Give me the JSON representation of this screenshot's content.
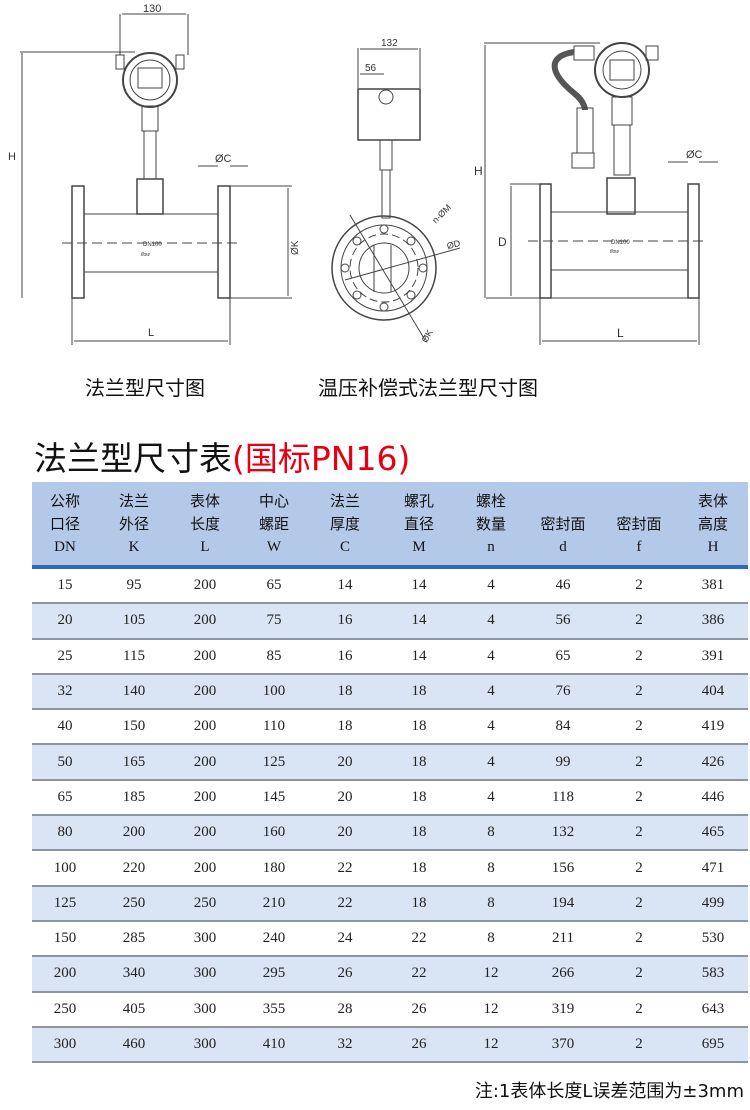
{
  "drawings": {
    "left": {
      "caption": "法兰型尺寸图",
      "labels": {
        "width": "130",
        "height": "H",
        "flange_thickness": "ØC",
        "flange_diameter": "ØK",
        "length": "L",
        "nameplate": "DN100",
        "flow": "flow"
      }
    },
    "middle": {
      "caption": "温压补偿式法兰型尺寸图",
      "labels": {
        "width": "132",
        "offset": "56",
        "holes": "n-ØM",
        "seal": "ØD",
        "bolt_circle": "ØK"
      }
    },
    "right": {
      "labels": {
        "height": "H",
        "diameter": "D",
        "flange_thickness": "ØC",
        "length": "L",
        "nameplate": "DN100",
        "flow": "flow"
      }
    }
  },
  "table": {
    "title": "法兰型尺寸表",
    "title_suffix": "(国标PN16)",
    "title_suffix_color": "#e60012",
    "header_color": "#b4c9e7",
    "alt_row_color": "#d9e4f4",
    "columns": [
      {
        "line1": "公称",
        "line2": "口径",
        "symbol": "DN"
      },
      {
        "line1": "法兰",
        "line2": "外径",
        "symbol": "K"
      },
      {
        "line1": "表体",
        "line2": "长度",
        "symbol": "L"
      },
      {
        "line1": "中心",
        "line2": "螺距",
        "symbol": "W"
      },
      {
        "line1": "法兰",
        "line2": "厚度",
        "symbol": "C"
      },
      {
        "line1": "螺孔",
        "line2": "直径",
        "symbol": "M"
      },
      {
        "line1": "螺栓",
        "line2": "数量",
        "symbol": "n"
      },
      {
        "line1": "",
        "line2": "密封面",
        "symbol": "d"
      },
      {
        "line1": "",
        "line2": "密封面",
        "symbol": "f"
      },
      {
        "line1": "表体",
        "line2": "高度",
        "symbol": "H"
      }
    ],
    "rows": [
      [
        "15",
        "95",
        "200",
        "65",
        "14",
        "14",
        "4",
        "46",
        "2",
        "381"
      ],
      [
        "20",
        "105",
        "200",
        "75",
        "16",
        "14",
        "4",
        "56",
        "2",
        "386"
      ],
      [
        "25",
        "115",
        "200",
        "85",
        "16",
        "14",
        "4",
        "65",
        "2",
        "391"
      ],
      [
        "32",
        "140",
        "200",
        "100",
        "18",
        "18",
        "4",
        "76",
        "2",
        "404"
      ],
      [
        "40",
        "150",
        "200",
        "110",
        "18",
        "18",
        "4",
        "84",
        "2",
        "419"
      ],
      [
        "50",
        "165",
        "200",
        "125",
        "20",
        "18",
        "4",
        "99",
        "2",
        "426"
      ],
      [
        "65",
        "185",
        "200",
        "145",
        "20",
        "18",
        "4",
        "118",
        "2",
        "446"
      ],
      [
        "80",
        "200",
        "200",
        "160",
        "20",
        "18",
        "8",
        "132",
        "2",
        "465"
      ],
      [
        "100",
        "220",
        "200",
        "180",
        "22",
        "18",
        "8",
        "156",
        "2",
        "471"
      ],
      [
        "125",
        "250",
        "250",
        "210",
        "22",
        "18",
        "8",
        "194",
        "2",
        "499"
      ],
      [
        "150",
        "285",
        "300",
        "240",
        "24",
        "22",
        "8",
        "211",
        "2",
        "530"
      ],
      [
        "200",
        "340",
        "300",
        "295",
        "26",
        "22",
        "12",
        "266",
        "2",
        "583"
      ],
      [
        "250",
        "405",
        "300",
        "355",
        "28",
        "26",
        "12",
        "319",
        "2",
        "643"
      ],
      [
        "300",
        "460",
        "300",
        "410",
        "32",
        "26",
        "12",
        "370",
        "2",
        "695"
      ]
    ],
    "note": "注:1表体长度L误差范围为±3mm"
  }
}
